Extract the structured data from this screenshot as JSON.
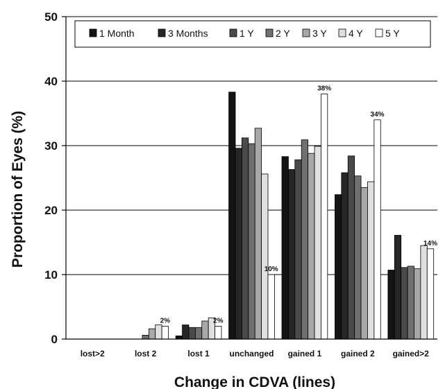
{
  "chart_data": {
    "type": "bar",
    "xlabel": "Change in CDVA (lines)",
    "ylabel": "Proportion of Eyes (%)",
    "ylim": [
      0,
      50
    ],
    "yticks": [
      0,
      10,
      20,
      30,
      40,
      50
    ],
    "grid": true,
    "legend_position": "top",
    "categories": [
      "lost>2",
      "lost 2",
      "lost 1",
      "unchanged",
      "gained 1",
      "gained 2",
      "gained>2"
    ],
    "series": [
      {
        "name": "1 Month",
        "color": "#141414",
        "values": [
          0,
          0,
          0.5,
          38.3,
          28.3,
          22.4,
          10.7
        ]
      },
      {
        "name": "3 Months",
        "color": "#262626",
        "values": [
          0,
          0,
          2.2,
          29.6,
          26.3,
          25.8,
          16.1
        ]
      },
      {
        "name": "1 Y",
        "color": "#4a4a4a",
        "values": [
          0,
          0,
          1.8,
          31.2,
          27.8,
          28.4,
          11.1
        ]
      },
      {
        "name": "2 Y",
        "color": "#707070",
        "values": [
          0,
          0.6,
          1.8,
          30.3,
          30.9,
          25.3,
          11.3
        ]
      },
      {
        "name": "3 Y",
        "color": "#a8a8a8",
        "values": [
          0,
          1.6,
          2.8,
          32.7,
          28.8,
          23.5,
          10.9
        ]
      },
      {
        "name": "4 Y",
        "color": "#e0e0e0",
        "values": [
          0,
          2.2,
          3.3,
          25.6,
          29.9,
          24.4,
          14.5
        ]
      },
      {
        "name": "5 Y",
        "color": "#ffffff",
        "values": [
          0,
          2.0,
          2.0,
          10.0,
          38.0,
          34.0,
          14.0
        ]
      }
    ],
    "annotations": [
      {
        "series": "5 Y",
        "category": "lost 2",
        "text": "2%"
      },
      {
        "series": "5 Y",
        "category": "lost 1",
        "text": "2%"
      },
      {
        "series": "5 Y",
        "category": "unchanged",
        "text": "10%"
      },
      {
        "series": "5 Y",
        "category": "gained 1",
        "text": "38%"
      },
      {
        "series": "5 Y",
        "category": "gained 2",
        "text": "34%"
      },
      {
        "series": "5 Y",
        "category": "gained>2",
        "text": "14%"
      }
    ]
  }
}
